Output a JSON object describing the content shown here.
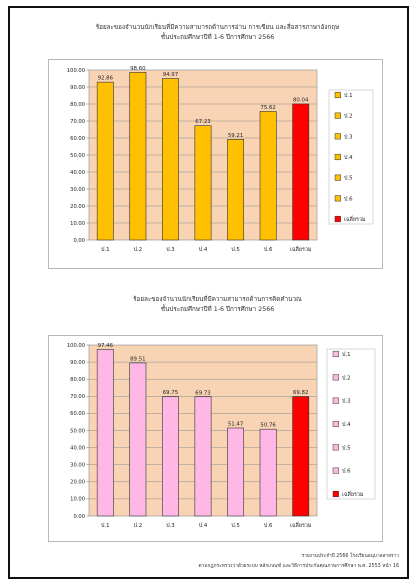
{
  "chart_data": [
    {
      "type": "bar",
      "title": "ร้อยละของจำนวนนักเรียนที่มีความสามารถด้านการอ่าน การเขียน และสื่อสารภาษาอังกฤษ",
      "subtitle": "ชั้นประถมศึกษาปีที่ 1-6 ปีการศึกษา 2566",
      "categories": [
        "ป.1",
        "ป.2",
        "ป.3",
        "ป.4",
        "ป.5",
        "ป.6",
        "เฉลี่ยรวม"
      ],
      "values": [
        92.86,
        98.6,
        94.97,
        67.23,
        59.21,
        75.62,
        80.04
      ],
      "value_labels": [
        "92.86",
        "98.60",
        "94.97",
        "67.23",
        "59.21",
        "75.62",
        "80.04"
      ],
      "ylim": [
        0,
        100
      ],
      "yticks": [
        "0.00",
        "10.00",
        "20.00",
        "30.00",
        "40.00",
        "50.00",
        "60.00",
        "70.00",
        "80.00",
        "90.00",
        "100.00"
      ],
      "legend": [
        "ป.1",
        "ป.2",
        "ป.3",
        "ป.4",
        "ป.5",
        "ป.6",
        "เฉลี่ยรวม"
      ],
      "legend_position": "right",
      "bar_color": "#ffc000",
      "average_color": "#ff0000",
      "plot_background": "#f9d4b4"
    },
    {
      "type": "bar",
      "title": "ร้อยละของจำนวนนักเรียนที่มีความสามารถด้านการคิดคำนวณ",
      "subtitle": "ชั้นประถมศึกษาปีที่ 1-6 ปีการศึกษา 2566",
      "categories": [
        "ป.1",
        "ป.2",
        "ป.3",
        "ป.4",
        "ป.5",
        "ป.6",
        "เฉลี่ยรวม"
      ],
      "values": [
        97.46,
        89.51,
        69.75,
        69.73,
        51.47,
        50.76,
        69.82
      ],
      "value_labels": [
        "97.46",
        "89.51",
        "69.75",
        "69.73",
        "51.47",
        "50.76",
        "69.82"
      ],
      "ylim": [
        0,
        100
      ],
      "yticks": [
        "0.00",
        "10.00",
        "20.00",
        "30.00",
        "40.00",
        "50.00",
        "60.00",
        "70.00",
        "80.00",
        "90.00",
        "100.00"
      ],
      "legend": [
        "ป.1",
        "ป.2",
        "ป.3",
        "ป.4",
        "ป.5",
        "ป.6",
        "เฉลี่ยรวม"
      ],
      "legend_position": "right",
      "bar_color": "#ffb8e6",
      "average_color": "#ff0000",
      "plot_background": "#f9d4b4"
    }
  ],
  "footer": {
    "line1": "รายงานประจำปี 2566 โรงเรียนอนุบาลสายราว",
    "line2": "ตามกฎกระทรวงว่าด้วยระบบ หลักเกณฑ์ และวิธีการประกันคุณภาพการศึกษา พ.ศ. 2553 หน้า 16"
  }
}
